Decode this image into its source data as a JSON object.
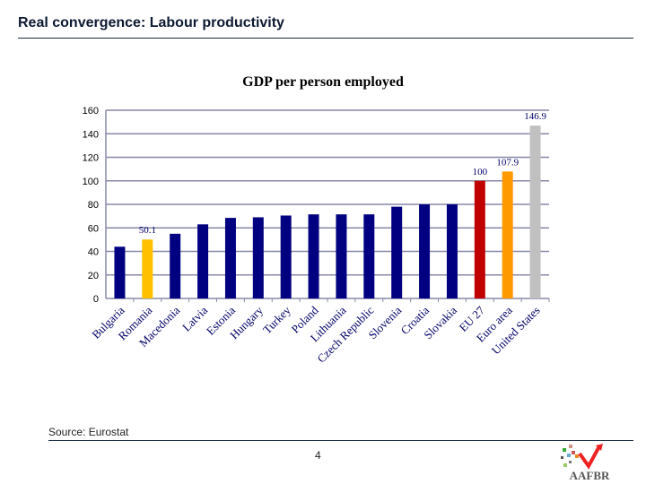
{
  "slide": {
    "title": "Real convergence: Labour productivity",
    "source": "Source: Eurostat",
    "page_number": "4",
    "logo_text": "AAFBR"
  },
  "chart_data": {
    "type": "bar",
    "title": "GDP per person employed",
    "xlabel": "",
    "ylabel": "",
    "ylim": [
      0,
      160
    ],
    "yticks": [
      0,
      20,
      40,
      60,
      80,
      100,
      120,
      140,
      160
    ],
    "grid": true,
    "legend": "none",
    "categories": [
      "Bulgaria",
      "Romania",
      "Macedonia",
      "Latvia",
      "Estonia",
      "Hungary",
      "Turkey",
      "Poland",
      "Lithuania",
      "Czech Republic",
      "Slovenia",
      "Croatia",
      "Slovakia",
      "EU 27",
      "Euro area",
      "United States"
    ],
    "values": [
      44,
      50.1,
      55,
      63,
      68.5,
      69,
      70.5,
      71.5,
      71.5,
      71.5,
      78,
      80,
      80,
      100,
      107.9,
      146.9
    ],
    "colors": [
      "#000080",
      "#ffc000",
      "#000080",
      "#000080",
      "#000080",
      "#000080",
      "#000080",
      "#000080",
      "#000080",
      "#000080",
      "#000080",
      "#000080",
      "#000080",
      "#c00000",
      "#ff9900",
      "#c0c0c0"
    ],
    "data_labels": {
      "1": "50.1",
      "13": "100",
      "14": "107.9",
      "15": "146.9"
    }
  }
}
